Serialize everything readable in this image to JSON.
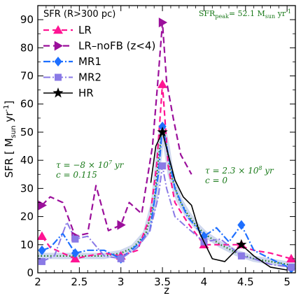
{
  "chart_data": {
    "type": "line",
    "xlabel": "z",
    "ylabel": "SFR [ M",
    "ylabel_sub": "sun",
    "ylabel_tail": " yr",
    "ylabel_sup": "-1",
    "ylabel_close": "]",
    "xlim": [
      2,
      5.1
    ],
    "ylim": [
      0,
      95
    ],
    "xticks": [
      2,
      2.5,
      3,
      3.5,
      4,
      4.5,
      5
    ],
    "xtick_labels": [
      "2",
      "2.5",
      "3",
      "3.5",
      "4",
      "4.5",
      "5"
    ],
    "yticks": [
      0,
      10,
      20,
      30,
      40,
      50,
      60,
      70,
      80,
      90
    ],
    "ytick_labels": [
      "0",
      "10",
      "20",
      "30",
      "40",
      "50",
      "60",
      "70",
      "80",
      "90"
    ],
    "legend_title": "SFR (R>300 pc)",
    "legend_position": "top-left",
    "annotations": {
      "peak_label": "SFR",
      "peak_sub": "peak",
      "peak_eq": "= 52.1 M",
      "peak_sun": "sun",
      "peak_unit": " yr",
      "peak_sup": "-1",
      "left_tau_1": "τ = −8 × 10",
      "left_tau_exp": "7",
      "left_tau_2": " yr",
      "left_c": "c = 0.115",
      "right_tau_1": "τ = 2.3 × 10",
      "right_tau_exp": "8",
      "right_tau_2": " yr",
      "right_c": "c = 0"
    },
    "colors": {
      "LR": "#ff1493",
      "LR_noFB": "#9b0f9b",
      "MR1": "#1e6fff",
      "MR2": "#8a7ae6",
      "HR": "#000000",
      "fit": "#1a7a1a",
      "fit_band": "#a8b8e0"
    },
    "series": [
      {
        "name": "LR",
        "marker": "triangle-up",
        "dash": "8,5",
        "x": [
          2.05,
          2.15,
          2.3,
          2.45,
          2.6,
          2.8,
          3.0,
          3.2,
          3.35,
          3.43,
          3.5,
          3.57,
          3.65,
          3.8,
          4.0,
          4.2,
          4.4,
          4.6,
          4.8,
          5.05
        ],
        "y": [
          13,
          9,
          7,
          5,
          6,
          7,
          6,
          8,
          20,
          38,
          67,
          38,
          25,
          18,
          10,
          10,
          10,
          8,
          7,
          5
        ],
        "marker_x": [
          2.05,
          2.45,
          3.0,
          3.5,
          4.0,
          4.45,
          5.05
        ],
        "marker_y": [
          13,
          5,
          6,
          67,
          10,
          10,
          5
        ]
      },
      {
        "name": "LR–noFB (z<4)",
        "marker": "triangle-right",
        "dash": "9,5",
        "x": [
          2.05,
          2.15,
          2.3,
          2.45,
          2.6,
          2.7,
          2.85,
          3.0,
          3.1,
          3.25,
          3.38,
          3.45,
          3.5,
          3.55,
          3.63,
          3.72,
          3.85
        ],
        "y": [
          24,
          27,
          25,
          13,
          14,
          31,
          15,
          17,
          25,
          21,
          45,
          70,
          89,
          68,
          55,
          42,
          35
        ],
        "marker_x": [
          2.05,
          2.45,
          3.0,
          3.5
        ],
        "marker_y": [
          24,
          13,
          17,
          89
        ]
      },
      {
        "name": "MR1",
        "marker": "diamond",
        "dash": "10,3,2,3",
        "x": [
          2.05,
          2.15,
          2.3,
          2.45,
          2.6,
          2.8,
          3.0,
          3.2,
          3.35,
          3.45,
          3.5,
          3.55,
          3.65,
          3.8,
          4.0,
          4.15,
          4.3,
          4.45,
          4.6,
          4.8,
          5.05
        ],
        "y": [
          8,
          9,
          14,
          7,
          8,
          8,
          5,
          10,
          15,
          35,
          52,
          45,
          30,
          20,
          13,
          16,
          11,
          17,
          8,
          5,
          1.5
        ],
        "marker_x": [
          2.05,
          2.45,
          3.0,
          3.5,
          4.0,
          4.45,
          5.05
        ],
        "marker_y": [
          8,
          7,
          5,
          52,
          13,
          17,
          1.5
        ]
      },
      {
        "name": "MR2",
        "marker": "square",
        "dash": "10,3,2,3",
        "x": [
          2.05,
          2.2,
          2.35,
          2.45,
          2.6,
          2.8,
          3.0,
          3.2,
          3.35,
          3.45,
          3.5,
          3.55,
          3.65,
          3.8,
          4.0,
          4.2,
          4.45,
          4.6,
          4.8,
          5.05
        ],
        "y": [
          4,
          6,
          18,
          12,
          13,
          6,
          5,
          9,
          15,
          27,
          38,
          30,
          20,
          16,
          11,
          12,
          6,
          5,
          3,
          2
        ],
        "marker_x": [
          2.05,
          2.45,
          3.0,
          3.5,
          4.0,
          4.45,
          5.05
        ],
        "marker_y": [
          4,
          12,
          5,
          38,
          11,
          6,
          2
        ]
      },
      {
        "name": "HR",
        "marker": "star",
        "dash": "",
        "x": [
          3.36,
          3.42,
          3.5,
          3.57,
          3.65,
          3.75,
          3.85,
          3.95,
          4.1,
          4.25,
          4.45,
          4.6,
          4.8,
          5.0
        ],
        "y": [
          32,
          45,
          50,
          42,
          33,
          27,
          24,
          14,
          5,
          4,
          10,
          6,
          2,
          1
        ],
        "marker_x": [
          3.5,
          4.45
        ],
        "marker_y": [
          50,
          10
        ]
      }
    ],
    "fit_band": {
      "x": [
        2.0,
        2.2,
        2.4,
        2.6,
        2.8,
        3.0,
        3.15,
        3.3,
        3.4,
        3.45,
        3.5,
        3.55,
        3.6,
        3.7,
        3.8,
        3.9,
        4.0,
        4.2,
        4.4,
        4.6,
        4.8,
        5.0,
        5.1
      ],
      "y": [
        6,
        6,
        6,
        6,
        6,
        7,
        9,
        14,
        25,
        40,
        52,
        45,
        35,
        26,
        21,
        17,
        14,
        10,
        7,
        5,
        4,
        3,
        2.5
      ]
    }
  }
}
